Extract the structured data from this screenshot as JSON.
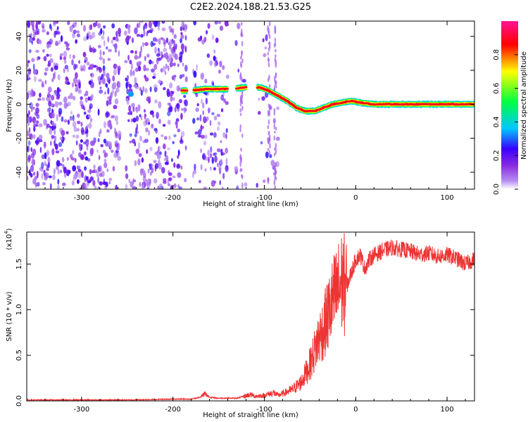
{
  "title": "C2E2.2024.188.21.53.G25",
  "chart_data": [
    {
      "type": "heatmap",
      "title": "C2E2.2024.188.21.53.G25",
      "xlabel": "Height of straight line (km)",
      "ylabel": "Frequency (Hz)",
      "xlim": [
        -360,
        130
      ],
      "ylim": [
        -50,
        49
      ],
      "x_ticks": [
        -300,
        -200,
        -100,
        0,
        100
      ],
      "y_ticks": [
        -40,
        -20,
        0,
        20,
        40
      ],
      "colorbar": {
        "label": "Normalized spectral amplitude",
        "range": [
          0.0,
          1.0
        ],
        "ticks": [
          "0.0",
          "0.2",
          "0.4",
          "0.6",
          "0.8"
        ],
        "tick_values": [
          0.0,
          0.2,
          0.4,
          0.6,
          0.8
        ],
        "colors": [
          "#ffffff",
          "#8a2be2",
          "#3a00ff",
          "#00c8ff",
          "#00ff40",
          "#ffff00",
          "#ff0000",
          "#ff1493"
        ]
      },
      "ridge": {
        "x": [
          -190,
          -180,
          -165,
          -150,
          -135,
          -120,
          -105,
          -95,
          -85,
          -75,
          -65,
          -55,
          -45,
          -35,
          -25,
          -15,
          -5,
          5,
          20,
          40,
          60,
          80,
          100,
          130
        ],
        "y": [
          8,
          8,
          9,
          9,
          9,
          10,
          10,
          8,
          5,
          2,
          -2,
          -4,
          -4,
          -2,
          0,
          1,
          2,
          1,
          0,
          0,
          0,
          0,
          0,
          0
        ]
      },
      "gaps_x": [
        [
          -258,
          -252
        ],
        [
          -185,
          -178
        ],
        [
          -140,
          -131
        ],
        [
          -120,
          -108
        ]
      ]
    },
    {
      "type": "line",
      "xlabel": "Height of straight line (km)",
      "ylabel": "SNR (10 * v/v)",
      "y_scale_label": "(x10",
      "y_scale_exp": "4",
      "y_scale_close": ")",
      "xlim": [
        -360,
        130
      ],
      "ylim": [
        0,
        1.85
      ],
      "x_ticks": [
        -300,
        -200,
        -100,
        0,
        100
      ],
      "y_ticks": [
        "0.0",
        "0.5",
        "1.0",
        "1.5"
      ],
      "y_tick_values": [
        0.0,
        0.5,
        1.0,
        1.5
      ],
      "line_color": "#ee3333",
      "series": [
        {
          "x": [
            -360,
            -300,
            -250,
            -200,
            -180,
            -170,
            -165,
            -160,
            -150,
            -130,
            -115,
            -110,
            -100,
            -90,
            -85,
            -80,
            -70,
            -60,
            -50,
            -45,
            -40,
            -35,
            -30,
            -25,
            -20,
            -15,
            -10,
            -5,
            0,
            5,
            10,
            15,
            20,
            25,
            30,
            40,
            50,
            60,
            70,
            80,
            90,
            100,
            110,
            120,
            130
          ],
          "y": [
            0.01,
            0.01,
            0.01,
            0.02,
            0.02,
            0.04,
            0.08,
            0.04,
            0.03,
            0.03,
            0.07,
            0.05,
            0.06,
            0.09,
            0.06,
            0.08,
            0.12,
            0.2,
            0.4,
            0.55,
            0.7,
            0.8,
            0.95,
            1.1,
            1.2,
            1.3,
            1.25,
            1.4,
            1.55,
            1.6,
            1.45,
            1.55,
            1.6,
            1.62,
            1.65,
            1.68,
            1.66,
            1.64,
            1.6,
            1.62,
            1.58,
            1.6,
            1.56,
            1.5,
            1.55
          ]
        }
      ]
    }
  ]
}
